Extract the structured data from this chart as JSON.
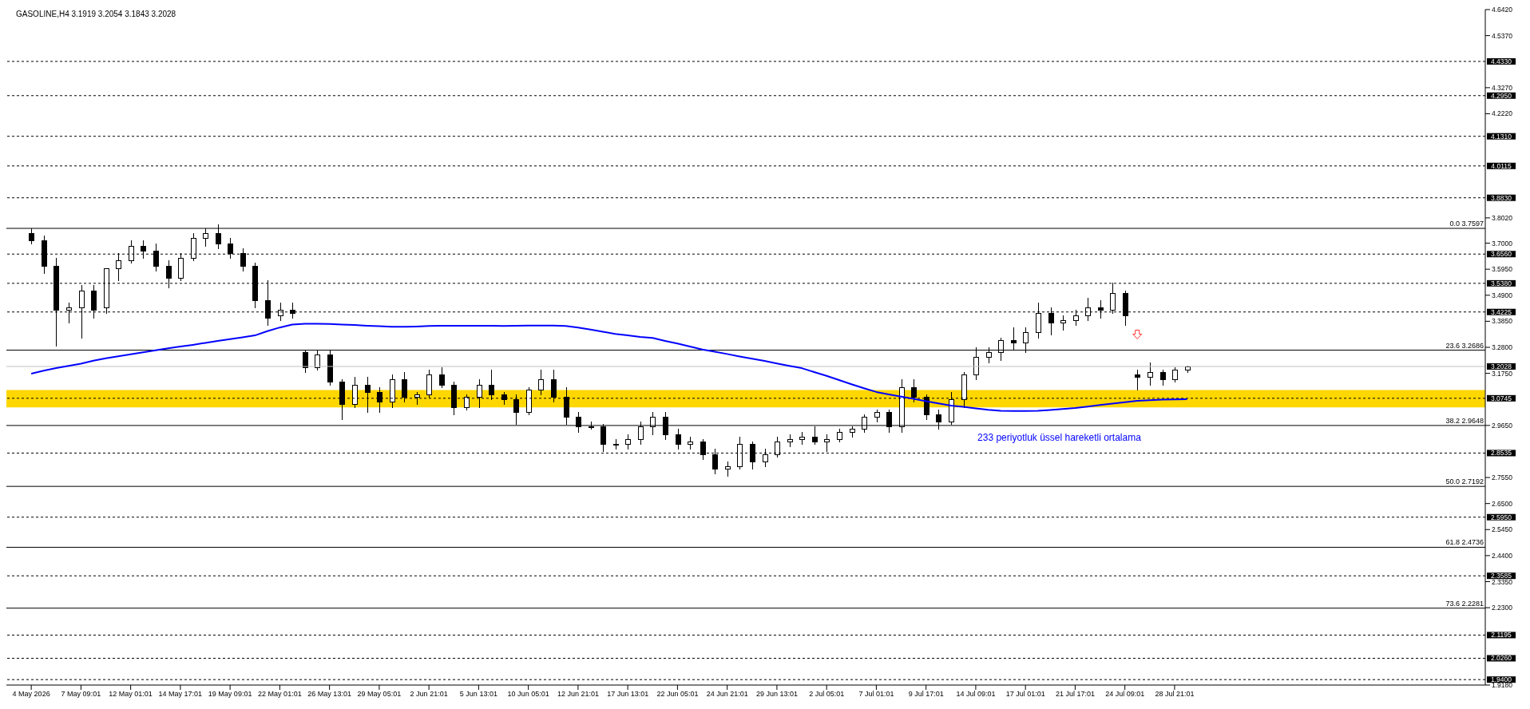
{
  "chart_data": {
    "type": "candlestick",
    "title": "GASOLINE,H4 3.1919 3.2054 3.1843 3.2028",
    "categories": [
      "4 May 2026",
      null,
      null,
      null,
      "7 May 09:01",
      null,
      null,
      null,
      "12 May 01:01",
      null,
      null,
      null,
      "14 May 17:01",
      null,
      null,
      null,
      "19 May 09:01",
      null,
      null,
      null,
      "22 May 01:01",
      null,
      null,
      null,
      "26 May 13:01",
      null,
      null,
      null,
      "29 May 05:01",
      null,
      null,
      null,
      "2 Jun 21:01",
      null,
      null,
      null,
      "5 Jun 13:01",
      null,
      null,
      null,
      "10 Jun 05:01",
      null,
      null,
      null,
      "12 Jun 21:01",
      null,
      null,
      null,
      "17 Jun 13:01",
      null,
      null,
      null,
      "22 Jun 05:01",
      null,
      null,
      null,
      "24 Jun 21:01",
      null,
      null,
      null,
      "29 Jun 13:01",
      null,
      null,
      null,
      "2 Jul 05:01",
      null,
      null,
      null,
      "7 Jul 01:01",
      null,
      null,
      null,
      "9 Jul 17:01",
      null,
      null,
      null,
      "14 Jul 09:01",
      null,
      null,
      null,
      "17 Jul 01:01",
      null,
      null,
      null,
      "21 Jul 17:01",
      null,
      null,
      null,
      "24 Jul 09:01",
      null,
      null,
      null,
      "28 Jul 21:01",
      null
    ],
    "ohlc": [
      [
        3.74,
        3.76,
        3.7,
        3.71
      ],
      [
        3.71,
        3.73,
        3.58,
        3.61
      ],
      [
        3.61,
        3.64,
        3.285,
        3.43
      ],
      [
        3.43,
        3.46,
        3.38,
        3.44
      ],
      [
        3.44,
        3.53,
        3.32,
        3.51
      ],
      [
        3.51,
        3.53,
        3.4,
        3.43
      ],
      [
        3.44,
        3.6,
        3.42,
        3.6
      ],
      [
        3.6,
        3.66,
        3.55,
        3.63
      ],
      [
        3.63,
        3.71,
        3.62,
        3.69
      ],
      [
        3.69,
        3.71,
        3.64,
        3.67
      ],
      [
        3.67,
        3.7,
        3.59,
        3.61
      ],
      [
        3.61,
        3.63,
        3.52,
        3.56
      ],
      [
        3.56,
        3.66,
        3.55,
        3.64
      ],
      [
        3.64,
        3.74,
        3.63,
        3.72
      ],
      [
        3.72,
        3.76,
        3.69,
        3.74
      ],
      [
        3.74,
        3.775,
        3.68,
        3.7
      ],
      [
        3.7,
        3.72,
        3.64,
        3.66
      ],
      [
        3.66,
        3.68,
        3.59,
        3.61
      ],
      [
        3.61,
        3.62,
        3.44,
        3.47
      ],
      [
        3.47,
        3.55,
        3.37,
        3.4
      ],
      [
        3.41,
        3.46,
        3.39,
        3.43
      ],
      [
        3.43,
        3.46,
        3.4,
        3.42
      ],
      [
        3.26,
        3.27,
        3.18,
        3.2
      ],
      [
        3.2,
        3.27,
        3.19,
        3.25
      ],
      [
        3.25,
        3.27,
        3.13,
        3.14
      ],
      [
        3.14,
        3.15,
        2.99,
        3.05
      ],
      [
        3.05,
        3.16,
        3.04,
        3.13
      ],
      [
        3.13,
        3.16,
        3.02,
        3.1
      ],
      [
        3.1,
        3.12,
        3.02,
        3.06
      ],
      [
        3.06,
        3.17,
        3.04,
        3.15
      ],
      [
        3.15,
        3.18,
        3.06,
        3.08
      ],
      [
        3.08,
        3.1,
        3.05,
        3.09
      ],
      [
        3.09,
        3.19,
        3.08,
        3.17
      ],
      [
        3.17,
        3.2,
        3.12,
        3.13
      ],
      [
        3.13,
        3.14,
        3.01,
        3.04
      ],
      [
        3.04,
        3.09,
        3.03,
        3.08
      ],
      [
        3.08,
        3.15,
        3.04,
        3.13
      ],
      [
        3.13,
        3.19,
        3.07,
        3.09
      ],
      [
        3.09,
        3.1,
        3.05,
        3.07
      ],
      [
        3.07,
        3.09,
        2.97,
        3.02
      ],
      [
        3.02,
        3.12,
        3.01,
        3.11
      ],
      [
        3.11,
        3.19,
        3.09,
        3.15
      ],
      [
        3.15,
        3.19,
        3.06,
        3.08
      ],
      [
        3.08,
        3.12,
        2.97,
        3.0
      ],
      [
        3.0,
        3.02,
        2.94,
        2.96
      ],
      [
        2.96,
        2.98,
        2.95,
        2.96
      ],
      [
        2.96,
        2.97,
        2.86,
        2.89
      ],
      [
        2.89,
        2.91,
        2.87,
        2.89
      ],
      [
        2.89,
        2.93,
        2.87,
        2.91
      ],
      [
        2.91,
        2.98,
        2.89,
        2.96
      ],
      [
        2.96,
        3.02,
        2.93,
        3.0
      ],
      [
        3.0,
        3.02,
        2.91,
        2.93
      ],
      [
        2.93,
        2.95,
        2.87,
        2.89
      ],
      [
        2.89,
        2.92,
        2.87,
        2.9
      ],
      [
        2.9,
        2.91,
        2.83,
        2.85
      ],
      [
        2.85,
        2.87,
        2.77,
        2.79
      ],
      [
        2.79,
        2.82,
        2.76,
        2.8
      ],
      [
        2.8,
        2.92,
        2.79,
        2.89
      ],
      [
        2.89,
        2.9,
        2.79,
        2.82
      ],
      [
        2.82,
        2.87,
        2.8,
        2.85
      ],
      [
        2.85,
        2.92,
        2.84,
        2.9
      ],
      [
        2.9,
        2.93,
        2.88,
        2.91
      ],
      [
        2.91,
        2.94,
        2.89,
        2.92
      ],
      [
        2.92,
        2.96,
        2.89,
        2.9
      ],
      [
        2.9,
        2.93,
        2.86,
        2.91
      ],
      [
        2.91,
        2.95,
        2.9,
        2.94
      ],
      [
        2.94,
        2.96,
        2.92,
        2.95
      ],
      [
        2.95,
        3.01,
        2.94,
        3.0
      ],
      [
        3.0,
        3.03,
        2.98,
        3.02
      ],
      [
        3.02,
        3.03,
        2.94,
        2.96
      ],
      [
        2.96,
        3.15,
        2.94,
        3.12
      ],
      [
        3.12,
        3.15,
        3.06,
        3.08
      ],
      [
        3.08,
        3.09,
        2.99,
        3.01
      ],
      [
        3.01,
        3.03,
        2.95,
        2.98
      ],
      [
        2.98,
        3.1,
        2.97,
        3.07
      ],
      [
        3.07,
        3.18,
        3.04,
        3.17
      ],
      [
        3.17,
        3.28,
        3.15,
        3.24
      ],
      [
        3.24,
        3.28,
        3.22,
        3.26
      ],
      [
        3.26,
        3.32,
        3.23,
        3.31
      ],
      [
        3.31,
        3.36,
        3.27,
        3.3
      ],
      [
        3.3,
        3.36,
        3.26,
        3.34
      ],
      [
        3.34,
        3.46,
        3.32,
        3.42
      ],
      [
        3.42,
        3.44,
        3.33,
        3.38
      ],
      [
        3.38,
        3.41,
        3.35,
        3.39
      ],
      [
        3.39,
        3.43,
        3.37,
        3.41
      ],
      [
        3.41,
        3.48,
        3.39,
        3.44
      ],
      [
        3.44,
        3.47,
        3.4,
        3.43
      ],
      [
        3.43,
        3.54,
        3.42,
        3.5
      ],
      [
        3.5,
        3.51,
        3.37,
        3.41
      ],
      [
        3.17,
        3.19,
        3.11,
        3.16
      ],
      [
        3.16,
        3.22,
        3.13,
        3.18
      ],
      [
        3.18,
        3.19,
        3.13,
        3.15
      ],
      [
        3.15,
        3.2,
        3.14,
        3.19
      ],
      [
        3.19,
        3.2054,
        3.18,
        3.2028
      ]
    ],
    "series": [
      {
        "name": "233 periyotluk üssel hareketli ortalama",
        "type": "line",
        "color": "#0000ff",
        "values": [
          3.174,
          3.186,
          3.196,
          3.205,
          3.214,
          3.226,
          3.236,
          3.244,
          3.252,
          3.26,
          3.268,
          3.276,
          3.283,
          3.29,
          3.298,
          3.306,
          3.313,
          3.32,
          3.328,
          3.345,
          3.36,
          3.372,
          3.375,
          3.375,
          3.374,
          3.372,
          3.37,
          3.367,
          3.365,
          3.363,
          3.363,
          3.364,
          3.366,
          3.367,
          3.367,
          3.367,
          3.367,
          3.367,
          3.366,
          3.367,
          3.368,
          3.368,
          3.368,
          3.366,
          3.36,
          3.352,
          3.343,
          3.334,
          3.328,
          3.322,
          3.318,
          3.306,
          3.295,
          3.283,
          3.271,
          3.262,
          3.253,
          3.243,
          3.234,
          3.225,
          3.215,
          3.205,
          3.196,
          3.18,
          3.165,
          3.148,
          3.131,
          3.115,
          3.1,
          3.09,
          3.081,
          3.072,
          3.063,
          3.054,
          3.045,
          3.04,
          3.034,
          3.028,
          3.024,
          3.023,
          3.023,
          3.024,
          3.027,
          3.031,
          3.035,
          3.041,
          3.047,
          3.053,
          3.059,
          3.064,
          3.067,
          3.069,
          3.07,
          3.071
        ]
      }
    ],
    "ylim": [
      1.918,
      4.642
    ],
    "yticks": [
      {
        "value": 4.642,
        "label": "4.6420"
      },
      {
        "value": 4.537,
        "label": "4.5370"
      },
      {
        "value": 4.327,
        "label": "4.3270"
      },
      {
        "value": 4.222,
        "label": "4.2220"
      },
      {
        "value": 3.802,
        "label": "3.8020"
      },
      {
        "value": 3.7,
        "label": "3.7000"
      },
      {
        "value": 3.595,
        "label": "3.5950"
      },
      {
        "value": 3.49,
        "label": "3.4900"
      },
      {
        "value": 3.385,
        "label": "3.3850"
      },
      {
        "value": 3.28,
        "label": "3.2800"
      },
      {
        "value": 3.175,
        "label": "3.1750"
      },
      {
        "value": 2.965,
        "label": "2.9650"
      },
      {
        "value": 2.755,
        "label": "2.7550"
      },
      {
        "value": 2.65,
        "label": "2.6500"
      },
      {
        "value": 2.545,
        "label": "2.5450"
      },
      {
        "value": 2.44,
        "label": "2.4400"
      },
      {
        "value": 2.335,
        "label": "2.3350"
      },
      {
        "value": 2.23,
        "label": "2.2300"
      },
      {
        "value": 1.918,
        "label": "1.9180"
      }
    ],
    "bands": [
      {
        "axis": "y",
        "from": 3.038,
        "to": 3.108,
        "color": "#ffd700"
      }
    ],
    "ref_lines": [
      {
        "axis": "y",
        "value": 4.433,
        "label": "4.4330",
        "line_style": "dashed",
        "color": "#000000"
      },
      {
        "axis": "y",
        "value": 4.295,
        "label": "4.2950",
        "line_style": "dashed",
        "color": "#000000"
      },
      {
        "axis": "y",
        "value": 4.131,
        "label": "4.1310",
        "line_style": "dashed",
        "color": "#000000"
      },
      {
        "axis": "y",
        "value": 4.0115,
        "label": "4.0115",
        "line_style": "dashed",
        "color": "#000000"
      },
      {
        "axis": "y",
        "value": 3.883,
        "label": "3.8830",
        "line_style": "dashed",
        "color": "#000000"
      },
      {
        "axis": "y",
        "value": 3.7597,
        "label": "0.0 3.7597",
        "line_style": "solid",
        "color": "#000000"
      },
      {
        "axis": "y",
        "value": 3.656,
        "label": "3.6560",
        "line_style": "dashed",
        "color": "#000000"
      },
      {
        "axis": "y",
        "value": 3.538,
        "label": "3.5380",
        "line_style": "dashed",
        "color": "#000000"
      },
      {
        "axis": "y",
        "value": 3.4225,
        "label": "3.4225",
        "line_style": "dashed",
        "color": "#000000"
      },
      {
        "axis": "y",
        "value": 3.2686,
        "label": "23.6 3.2686",
        "line_style": "solid",
        "color": "#000000"
      },
      {
        "axis": "y",
        "value": 3.2028,
        "label": "3.2028",
        "line_style": "solid",
        "color": "#c0c0c0"
      },
      {
        "axis": "y",
        "value": 3.0745,
        "label": "3.0745",
        "line_style": "dashed",
        "color": "#000000"
      },
      {
        "axis": "y",
        "value": 2.9648,
        "label": "38.2 2.9648",
        "line_style": "solid",
        "color": "#000000"
      },
      {
        "axis": "y",
        "value": 2.8535,
        "label": "2.8535",
        "line_style": "dashed",
        "color": "#000000"
      },
      {
        "axis": "y",
        "value": 2.7192,
        "label": "50.0 2.7192",
        "line_style": "solid",
        "color": "#000000"
      },
      {
        "axis": "y",
        "value": 2.595,
        "label": "2.5950",
        "line_style": "dashed",
        "color": "#000000"
      },
      {
        "axis": "y",
        "value": 2.4736,
        "label": "61.8 2.4736",
        "line_style": "solid",
        "color": "#000000"
      },
      {
        "axis": "y",
        "value": 2.3585,
        "label": "2.3585",
        "line_style": "dashed",
        "color": "#000000"
      },
      {
        "axis": "y",
        "value": 2.2281,
        "label": "73.6 2.2281",
        "line_style": "solid",
        "color": "#000000"
      },
      {
        "axis": "y",
        "value": 2.1195,
        "label": "2.1195",
        "line_style": "dashed",
        "color": "#000000"
      },
      {
        "axis": "y",
        "value": 2.026,
        "label": "2.0260",
        "line_style": "dashed",
        "color": "#000000"
      },
      {
        "axis": "y",
        "value": 1.94,
        "label": "1.9400",
        "line_style": "dashed",
        "color": "#000000"
      }
    ]
  }
}
